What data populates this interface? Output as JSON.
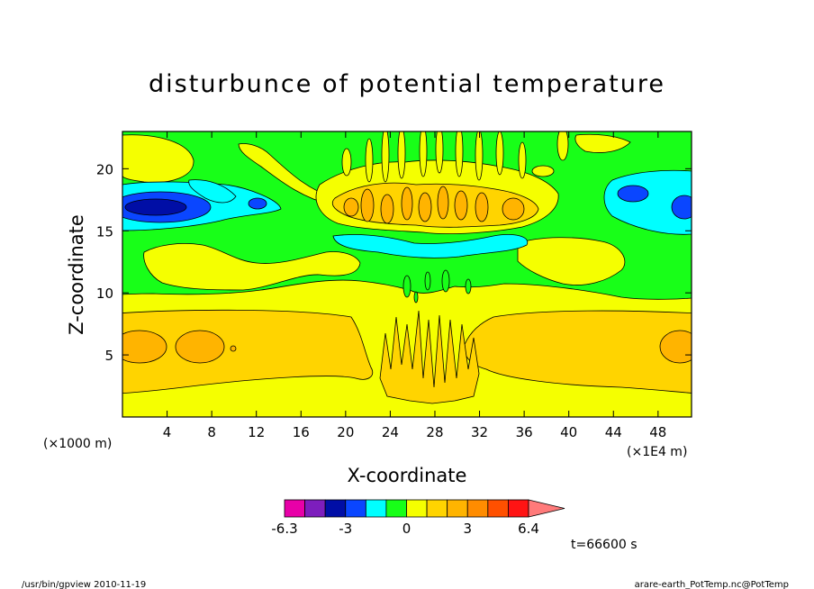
{
  "chart_data": {
    "type": "heatmap",
    "title": "disturbunce of potential temperature",
    "xlabel": "X-coordinate",
    "ylabel": "Z-coordinate",
    "x_unit_left": "(×1000 m)",
    "x_unit_right": "(×1E4 m)",
    "xlim": [
      0,
      51
    ],
    "ylim": [
      0,
      23
    ],
    "x_ticks": [
      4,
      8,
      12,
      16,
      20,
      24,
      28,
      32,
      36,
      40,
      44,
      48
    ],
    "y_ticks": [
      5,
      10,
      15,
      20
    ],
    "colorbar": {
      "levels": [
        -6.3,
        -5.3,
        -4.2,
        -3.0,
        -2.0,
        -1.0,
        0.0,
        1.0,
        2.0,
        3.0,
        4.2,
        5.3,
        6.4
      ],
      "labels": [
        "-6.3",
        "-3",
        "0",
        "3",
        "6.4"
      ],
      "label_values": [
        -6.3,
        -3,
        0,
        3,
        6.4
      ],
      "colors": [
        "#e800a8",
        "#7d1ebd",
        "#000ea6",
        "#0a46ff",
        "#00ffff",
        "#18ff18",
        "#f5ff00",
        "#ffd400",
        "#ffb400",
        "#ff8c00",
        "#ff5000",
        "#ff1414",
        "#ff7a7a",
        "#ffb8b8"
      ],
      "extend": "max"
    },
    "field_regions": [
      {
        "level": 0.5,
        "desc": "yellow background 0-1"
      },
      {
        "level": 1.5,
        "desc": "lower orange band z 2-8"
      },
      {
        "level": 2.5,
        "desc": "orange cores near z 5.5"
      },
      {
        "level": -0.5,
        "desc": "green upper layer z 10-23"
      },
      {
        "level": -2.5,
        "desc": "cyan lobes near z 17"
      },
      {
        "level": -3.5,
        "desc": "blue cores near z 17"
      },
      {
        "level": -4.5,
        "desc": "dark blue core near x 3, z 17"
      }
    ],
    "time_label": "t=66600 s"
  },
  "footer": {
    "left": "/usr/bin/gpview   2010-11-19",
    "right": "arare-earth_PotTemp.nc@PotTemp"
  }
}
